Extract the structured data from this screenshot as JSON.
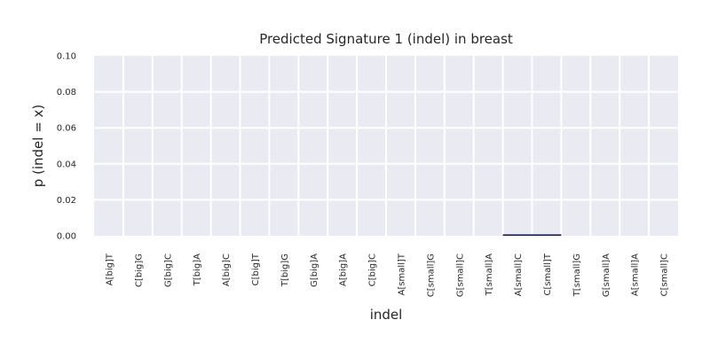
{
  "chart_data": {
    "type": "bar",
    "title": "Predicted Signature 1 (indel) in breast",
    "xlabel": "indel",
    "ylabel": "p (indel = x)",
    "ylim": [
      0,
      0.1
    ],
    "yticks": [
      "0.00",
      "0.02",
      "0.04",
      "0.06",
      "0.08",
      "0.10"
    ],
    "grid": true,
    "categories": [
      "A[big]T",
      "C[big]G",
      "G[big]C",
      "T[big]A",
      "A[big]C",
      "C[big]T",
      "T[big]G",
      "G[big]A",
      "A[big]A",
      "C[big]C",
      "A[small]T",
      "C[small]G",
      "G[small]C",
      "T[small]A",
      "A[small]C",
      "C[small]T",
      "T[small]G",
      "G[small]A",
      "A[small]A",
      "C[small]C"
    ],
    "values": [
      0,
      0,
      0,
      0,
      0,
      0,
      0,
      0,
      0,
      0,
      0,
      0,
      0,
      0,
      0.0008,
      0.0008,
      0,
      0,
      0,
      0
    ],
    "colors": {
      "plot_bg": "#EAEAF2",
      "grid": "#FFFFFF",
      "bar": "#1F1F4D",
      "text": "#262626"
    }
  }
}
